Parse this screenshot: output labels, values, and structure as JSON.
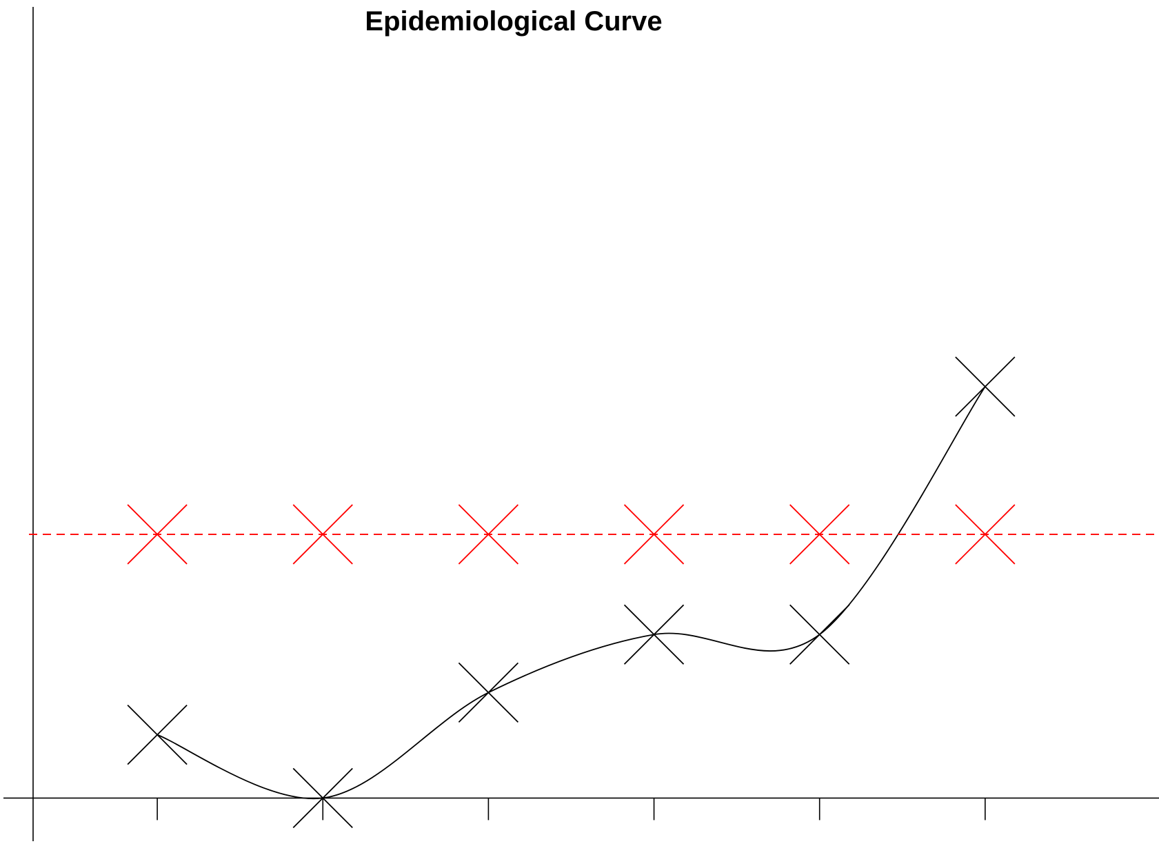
{
  "chart_data": {
    "type": "line",
    "title": "Epidemiological Curve",
    "xlabel": "",
    "ylabel": "",
    "x": [
      1,
      2,
      3,
      4,
      5,
      6
    ],
    "xlim": [
      0.25,
      7.05
    ],
    "ylim": [
      -0.04,
      1.5
    ],
    "x_ticks": [
      0.25,
      1,
      2,
      3,
      4,
      5,
      6
    ],
    "grid": false,
    "legend": "none",
    "series": [
      {
        "values": [
          0.12,
          0.0,
          0.2,
          0.31,
          0.31,
          0.78
        ],
        "color": "#000000",
        "line_style": "smooth",
        "marker": "x"
      },
      {
        "values": [
          0.5,
          0.5,
          0.5,
          0.5,
          0.5,
          0.5
        ],
        "color": "#ff0000",
        "line_style": "dashed",
        "marker": "x"
      }
    ]
  }
}
